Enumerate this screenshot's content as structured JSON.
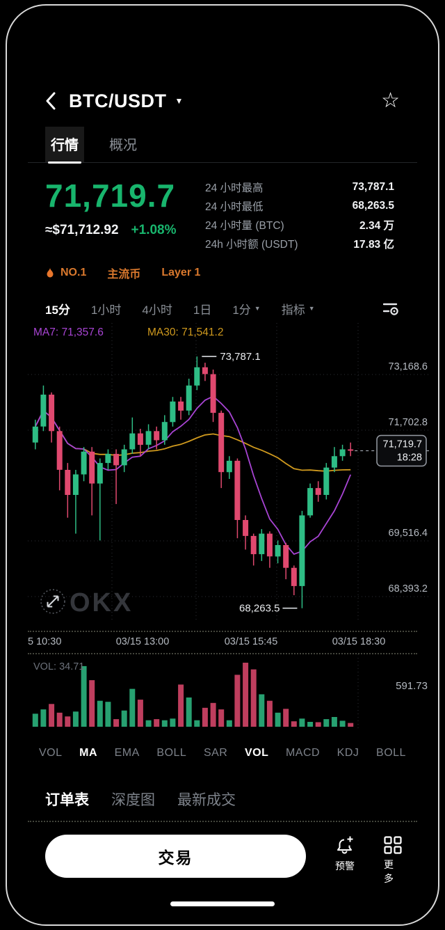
{
  "header": {
    "title": "BTC/USDT"
  },
  "icons": {
    "star": "☆",
    "caret_down": "▼"
  },
  "tabs": [
    {
      "label": "行情",
      "active": true
    },
    {
      "label": "概况",
      "active": false
    }
  ],
  "price": {
    "last": "71,719.7",
    "fiat": "≈$71,712.92",
    "change": "+1.08%"
  },
  "stats": [
    {
      "label": "24 小时最高",
      "value": "73,787.1"
    },
    {
      "label": "24 小时最低",
      "value": "68,263.5"
    },
    {
      "label": "24 小时量 (BTC)",
      "value": "2.34 万"
    },
    {
      "label": "24h 小时额 (USDT)",
      "value": "17.83 亿"
    }
  ],
  "tags": [
    "NO.1",
    "主流币",
    "Layer 1"
  ],
  "timeframes": [
    {
      "label": "15分",
      "active": true
    },
    {
      "label": "1小时",
      "active": false
    },
    {
      "label": "4小时",
      "active": false
    },
    {
      "label": "1日",
      "active": false
    },
    {
      "label": "1分",
      "active": false,
      "caret": true
    },
    {
      "label": "指标",
      "active": false,
      "caret": true
    }
  ],
  "indicators": [
    {
      "label": "VOL",
      "active": false
    },
    {
      "label": "MA",
      "active": true
    },
    {
      "label": "EMA",
      "active": false
    },
    {
      "label": "BOLL",
      "active": false
    },
    {
      "label": "SAR",
      "active": false
    },
    {
      "label": "VOL",
      "active": true
    },
    {
      "label": "MACD",
      "active": false
    },
    {
      "label": "KDJ",
      "active": false
    },
    {
      "label": "BOLL",
      "active": false
    }
  ],
  "bottom_tabs": [
    {
      "label": "订单表",
      "active": true
    },
    {
      "label": "深度图",
      "active": false
    },
    {
      "label": "最新成交",
      "active": false
    }
  ],
  "actions": {
    "trade": "交易",
    "alert": "预警",
    "more": "更多"
  },
  "colors": {
    "up": "#2ebd85",
    "down": "#e0496f",
    "ma7": "#a844d4",
    "ma30": "#d09a1e",
    "accent_green": "#18b56d",
    "tag_orange": "#d9782d",
    "grid": "#2e3136",
    "axis_text": "#b5bac1"
  },
  "chart_data": {
    "type": "candlestick",
    "symbol": "BTC/USDT",
    "interval_selected": "15分",
    "ma7_label": "MA7: 71,357.6",
    "ma30_label": "MA30: 71,541.2",
    "high_annotation": "73,787.1",
    "low_annotation": "68,263.5",
    "last_price": "71,719.7",
    "last_time": "18:28",
    "watermark": "OKX",
    "price_domain": [
      68000,
      74400
    ],
    "y_axis_labels": [
      "73,168.6",
      "71,702.8",
      "69,516.4",
      "68,393.2"
    ],
    "x_axis_labels": [
      "5 10:30",
      "03/15 13:00",
      "03/15 15:45",
      "03/15 18:30"
    ],
    "volume_current_label": "VOL: 34.71",
    "volume_max_label": "591.73",
    "candles": [
      [
        71900,
        72400,
        71750,
        72250
      ],
      [
        72250,
        73150,
        72150,
        72950
      ],
      [
        72950,
        73000,
        71900,
        72150
      ],
      [
        72150,
        72250,
        70850,
        71300
      ],
      [
        71300,
        71450,
        70250,
        70750
      ],
      [
        70750,
        71300,
        69900,
        71200
      ],
      [
        71200,
        71800,
        71050,
        71700
      ],
      [
        71700,
        71800,
        70300,
        71000
      ],
      [
        71000,
        71550,
        69750,
        71450
      ],
      [
        71450,
        71750,
        71300,
        71650
      ],
      [
        71650,
        71750,
        70550,
        71400
      ],
      [
        71400,
        71850,
        71250,
        71750
      ],
      [
        71750,
        72450,
        71650,
        72100
      ],
      [
        72100,
        72200,
        71600,
        71850
      ],
      [
        71850,
        72300,
        71750,
        72150
      ],
      [
        72150,
        72250,
        71750,
        71950
      ],
      [
        71950,
        72500,
        71850,
        72350
      ],
      [
        72350,
        72900,
        72250,
        72800
      ],
      [
        72800,
        72900,
        72400,
        72600
      ],
      [
        72600,
        73300,
        72500,
        73150
      ],
      [
        73150,
        73787.1,
        73050,
        73550
      ],
      [
        73550,
        73650,
        73250,
        73400
      ],
      [
        73400,
        73500,
        72350,
        72550
      ],
      [
        72550,
        72600,
        70900,
        71250
      ],
      [
        71250,
        71600,
        71100,
        71500
      ],
      [
        71500,
        71550,
        69800,
        70200
      ],
      [
        70200,
        70300,
        69550,
        69850
      ],
      [
        69850,
        69900,
        69200,
        69450
      ],
      [
        69450,
        70000,
        69300,
        69900
      ],
      [
        69900,
        69950,
        69150,
        69400
      ],
      [
        69400,
        69750,
        69250,
        69650
      ],
      [
        69650,
        69700,
        68900,
        69150
      ],
      [
        69150,
        69200,
        68550,
        68750
      ],
      [
        68750,
        70400,
        68263.5,
        70300
      ],
      [
        70300,
        71000,
        70250,
        70900
      ],
      [
        70900,
        71050,
        70600,
        70750
      ],
      [
        70750,
        71450,
        70650,
        71350
      ],
      [
        71350,
        71800,
        71250,
        71600
      ],
      [
        71600,
        71850,
        71500,
        71750
      ],
      [
        71750,
        71900,
        71600,
        71719.7
      ]
    ],
    "volumes": [
      120,
      160,
      210,
      130,
      95,
      140,
      560,
      430,
      240,
      230,
      70,
      150,
      350,
      250,
      60,
      70,
      60,
      75,
      390,
      270,
      60,
      175,
      220,
      160,
      60,
      480,
      591.73,
      530,
      300,
      240,
      130,
      165,
      50,
      75,
      45,
      42,
      70,
      90,
      55,
      34.71
    ]
  }
}
